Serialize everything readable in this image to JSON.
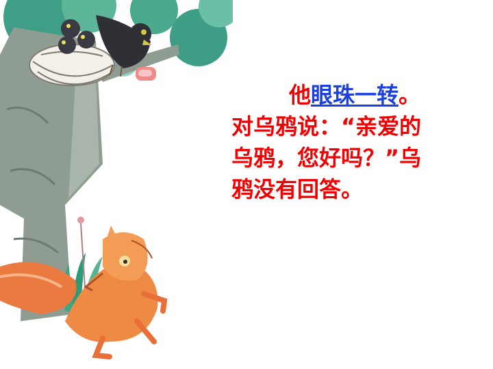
{
  "scene": {
    "illustration": "fox-and-crow-illustration",
    "icons": [
      "tree-icon",
      "nest-icon",
      "crow-icon",
      "meat-icon",
      "fox-icon"
    ]
  },
  "story": {
    "line1": {
      "pre": "他",
      "highlight": "眼珠一转",
      "post": "。"
    },
    "line2": "对乌鸦说：“亲爱的",
    "line3": "乌鸦，您好吗？”乌",
    "line4": "鸦没有回答。"
  },
  "colors": {
    "text": "#f00000",
    "highlight": "#1c3fe0",
    "background": "#ffffff"
  }
}
